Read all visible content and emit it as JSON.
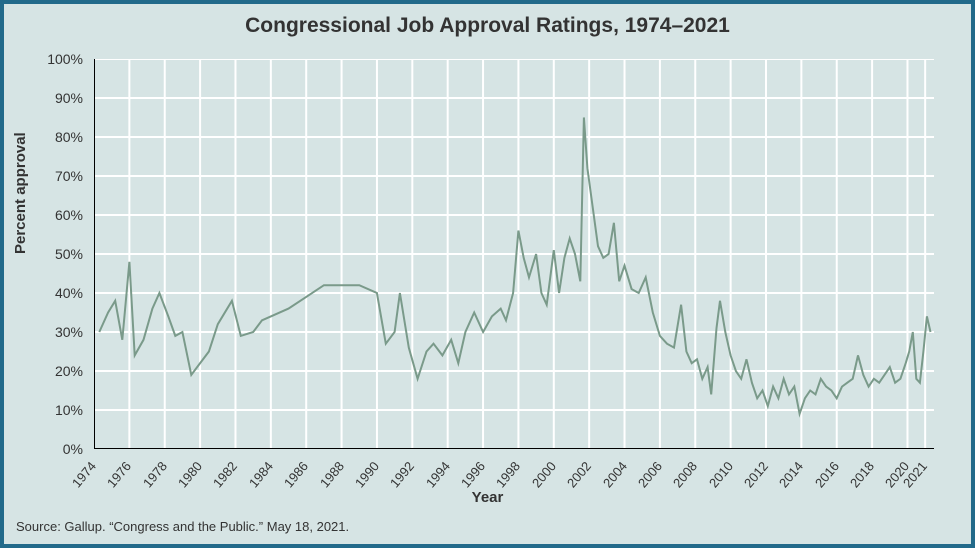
{
  "chart": {
    "type": "line",
    "title": "Congressional Job Approval Ratings, 1974–2021",
    "xlabel": "Year",
    "ylabel": "Percent approval",
    "source": "Source: Gallup. “Congress and the Public.” May 18, 2021.",
    "background_color": "#d6e4e4",
    "frame_border_color": "#226a8a",
    "grid_color": "#ffffff",
    "line_color": "#7a9a8a",
    "line_width": 2,
    "title_fontsize": 21,
    "label_fontsize": 15,
    "tick_fontsize": 14,
    "ylim": [
      0,
      100
    ],
    "ytick_step": 10,
    "xlim": [
      1974,
      2021.5
    ],
    "xticks": [
      1974,
      1976,
      1978,
      1980,
      1982,
      1984,
      1986,
      1988,
      1990,
      1992,
      1994,
      1996,
      1998,
      2000,
      2002,
      2004,
      2006,
      2008,
      2010,
      2012,
      2014,
      2016,
      2018,
      2020,
      2021
    ],
    "yticks": [
      "0%",
      "10%",
      "20%",
      "30%",
      "40%",
      "50%",
      "60%",
      "70%",
      "80%",
      "90%",
      "100%"
    ],
    "series": [
      {
        "x": 1974.3,
        "y": 30
      },
      {
        "x": 1974.8,
        "y": 35
      },
      {
        "x": 1975.2,
        "y": 38
      },
      {
        "x": 1975.6,
        "y": 28
      },
      {
        "x": 1976.0,
        "y": 48
      },
      {
        "x": 1976.3,
        "y": 24
      },
      {
        "x": 1976.8,
        "y": 28
      },
      {
        "x": 1977.3,
        "y": 36
      },
      {
        "x": 1977.7,
        "y": 40
      },
      {
        "x": 1978.2,
        "y": 34
      },
      {
        "x": 1978.6,
        "y": 29
      },
      {
        "x": 1979.0,
        "y": 30
      },
      {
        "x": 1979.5,
        "y": 19
      },
      {
        "x": 1980.5,
        "y": 25
      },
      {
        "x": 1981.0,
        "y": 32
      },
      {
        "x": 1981.8,
        "y": 38
      },
      {
        "x": 1982.3,
        "y": 29
      },
      {
        "x": 1983.0,
        "y": 30
      },
      {
        "x": 1983.5,
        "y": 33
      },
      {
        "x": 1984.0,
        "y": 34
      },
      {
        "x": 1985.0,
        "y": 36
      },
      {
        "x": 1986.0,
        "y": 39
      },
      {
        "x": 1987.0,
        "y": 42
      },
      {
        "x": 1988.0,
        "y": 42
      },
      {
        "x": 1989.0,
        "y": 42
      },
      {
        "x": 1990.0,
        "y": 40
      },
      {
        "x": 1990.5,
        "y": 27
      },
      {
        "x": 1991.0,
        "y": 30
      },
      {
        "x": 1991.3,
        "y": 40
      },
      {
        "x": 1991.8,
        "y": 26
      },
      {
        "x": 1992.3,
        "y": 18
      },
      {
        "x": 1992.8,
        "y": 25
      },
      {
        "x": 1993.2,
        "y": 27
      },
      {
        "x": 1993.7,
        "y": 24
      },
      {
        "x": 1994.2,
        "y": 28
      },
      {
        "x": 1994.6,
        "y": 22
      },
      {
        "x": 1995.0,
        "y": 30
      },
      {
        "x": 1995.5,
        "y": 35
      },
      {
        "x": 1996.0,
        "y": 30
      },
      {
        "x": 1996.5,
        "y": 34
      },
      {
        "x": 1997.0,
        "y": 36
      },
      {
        "x": 1997.3,
        "y": 33
      },
      {
        "x": 1997.7,
        "y": 40
      },
      {
        "x": 1998.0,
        "y": 56
      },
      {
        "x": 1998.3,
        "y": 49
      },
      {
        "x": 1998.6,
        "y": 44
      },
      {
        "x": 1999.0,
        "y": 50
      },
      {
        "x": 1999.3,
        "y": 40
      },
      {
        "x": 1999.6,
        "y": 37
      },
      {
        "x": 2000.0,
        "y": 51
      },
      {
        "x": 2000.3,
        "y": 40
      },
      {
        "x": 2000.6,
        "y": 49
      },
      {
        "x": 2000.9,
        "y": 54
      },
      {
        "x": 2001.2,
        "y": 50
      },
      {
        "x": 2001.5,
        "y": 43
      },
      {
        "x": 2001.7,
        "y": 85
      },
      {
        "x": 2001.9,
        "y": 72
      },
      {
        "x": 2002.2,
        "y": 62
      },
      {
        "x": 2002.5,
        "y": 52
      },
      {
        "x": 2002.8,
        "y": 49
      },
      {
        "x": 2003.1,
        "y": 50
      },
      {
        "x": 2003.4,
        "y": 58
      },
      {
        "x": 2003.7,
        "y": 43
      },
      {
        "x": 2004.0,
        "y": 47
      },
      {
        "x": 2004.4,
        "y": 41
      },
      {
        "x": 2004.8,
        "y": 40
      },
      {
        "x": 2005.2,
        "y": 44
      },
      {
        "x": 2005.6,
        "y": 35
      },
      {
        "x": 2006.0,
        "y": 29
      },
      {
        "x": 2006.4,
        "y": 27
      },
      {
        "x": 2006.8,
        "y": 26
      },
      {
        "x": 2007.2,
        "y": 37
      },
      {
        "x": 2007.5,
        "y": 25
      },
      {
        "x": 2007.8,
        "y": 22
      },
      {
        "x": 2008.1,
        "y": 23
      },
      {
        "x": 2008.4,
        "y": 18
      },
      {
        "x": 2008.7,
        "y": 21
      },
      {
        "x": 2008.9,
        "y": 14
      },
      {
        "x": 2009.2,
        "y": 31
      },
      {
        "x": 2009.4,
        "y": 38
      },
      {
        "x": 2009.7,
        "y": 30
      },
      {
        "x": 2010.0,
        "y": 24
      },
      {
        "x": 2010.3,
        "y": 20
      },
      {
        "x": 2010.6,
        "y": 18
      },
      {
        "x": 2010.9,
        "y": 23
      },
      {
        "x": 2011.2,
        "y": 17
      },
      {
        "x": 2011.5,
        "y": 13
      },
      {
        "x": 2011.8,
        "y": 15
      },
      {
        "x": 2012.1,
        "y": 11
      },
      {
        "x": 2012.4,
        "y": 16
      },
      {
        "x": 2012.7,
        "y": 13
      },
      {
        "x": 2013.0,
        "y": 18
      },
      {
        "x": 2013.3,
        "y": 14
      },
      {
        "x": 2013.6,
        "y": 16
      },
      {
        "x": 2013.9,
        "y": 9
      },
      {
        "x": 2014.2,
        "y": 13
      },
      {
        "x": 2014.5,
        "y": 15
      },
      {
        "x": 2014.8,
        "y": 14
      },
      {
        "x": 2015.1,
        "y": 18
      },
      {
        "x": 2015.4,
        "y": 16
      },
      {
        "x": 2015.7,
        "y": 15
      },
      {
        "x": 2016.0,
        "y": 13
      },
      {
        "x": 2016.3,
        "y": 16
      },
      {
        "x": 2016.6,
        "y": 17
      },
      {
        "x": 2016.9,
        "y": 18
      },
      {
        "x": 2017.2,
        "y": 24
      },
      {
        "x": 2017.5,
        "y": 19
      },
      {
        "x": 2017.8,
        "y": 16
      },
      {
        "x": 2018.1,
        "y": 18
      },
      {
        "x": 2018.4,
        "y": 17
      },
      {
        "x": 2018.7,
        "y": 19
      },
      {
        "x": 2019.0,
        "y": 21
      },
      {
        "x": 2019.3,
        "y": 17
      },
      {
        "x": 2019.6,
        "y": 18
      },
      {
        "x": 2019.9,
        "y": 22
      },
      {
        "x": 2020.1,
        "y": 25
      },
      {
        "x": 2020.3,
        "y": 30
      },
      {
        "x": 2020.5,
        "y": 18
      },
      {
        "x": 2020.7,
        "y": 17
      },
      {
        "x": 2020.9,
        "y": 25
      },
      {
        "x": 2021.1,
        "y": 34
      },
      {
        "x": 2021.3,
        "y": 30
      }
    ]
  }
}
